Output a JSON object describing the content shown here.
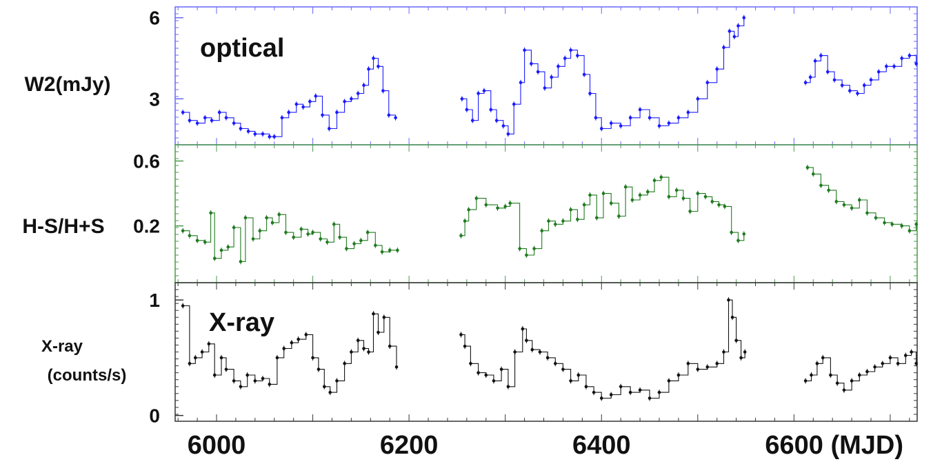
{
  "chart_data": [
    {
      "type": "line",
      "panel": "optical",
      "ylabel": "W2(mJy)",
      "annotation": "optical",
      "color": "#1a1aff",
      "xlim": [
        5957,
        6728
      ],
      "ylim": [
        1.3,
        6.4
      ],
      "yticks": [
        3,
        6
      ],
      "series": [
        {
          "x": [
            5965,
            5972,
            5980,
            5988,
            5995,
            6003,
            6010,
            6018,
            6025,
            6033,
            6040,
            6048,
            6055,
            6060,
            6068,
            6075,
            6083,
            6090,
            6097,
            6103,
            6110,
            6117,
            6125,
            6133,
            6140,
            6147,
            6153,
            6158,
            6163,
            6168,
            6173,
            6179,
            6186,
            6255,
            6260,
            6266,
            6272,
            6278,
            6285,
            6291,
            6298,
            6303,
            6309,
            6316,
            6320,
            6327,
            6334,
            6341,
            6348,
            6355,
            6362,
            6368,
            6375,
            6382,
            6388,
            6394,
            6400,
            6410,
            6420,
            6430,
            6440,
            6450,
            6460,
            6470,
            6480,
            6490,
            6500,
            6510,
            6520,
            6527,
            6533,
            6538,
            6542,
            6548,
            6612,
            6617,
            6622,
            6628,
            6635,
            6642,
            6650,
            6658,
            6666,
            6673,
            6680,
            6688,
            6696,
            6704,
            6712,
            6720,
            6727
          ],
          "y": [
            2.5,
            2.2,
            2.1,
            2.3,
            2.2,
            2.5,
            2.3,
            2.1,
            1.9,
            1.8,
            1.7,
            1.7,
            1.6,
            1.6,
            2.3,
            2.5,
            2.8,
            2.7,
            2.9,
            3.1,
            2.4,
            1.9,
            2.5,
            2.9,
            3.0,
            3.2,
            3.5,
            4.1,
            4.5,
            4.2,
            3.3,
            2.4,
            2.3,
            3.0,
            2.6,
            2.2,
            3.2,
            3.3,
            2.6,
            2.2,
            2.0,
            1.7,
            2.8,
            3.6,
            4.8,
            4.3,
            4.0,
            3.4,
            3.8,
            4.2,
            4.5,
            4.8,
            4.6,
            3.9,
            3.2,
            2.3,
            1.9,
            2.1,
            2.0,
            2.3,
            2.6,
            2.3,
            2.0,
            2.1,
            2.3,
            2.5,
            3.0,
            3.6,
            4.1,
            4.9,
            5.5,
            5.3,
            5.7,
            6.0,
            3.6,
            3.8,
            4.4,
            4.6,
            4.0,
            3.7,
            3.5,
            3.3,
            3.2,
            3.5,
            3.7,
            4.0,
            4.2,
            4.2,
            4.5,
            4.6,
            4.3
          ]
        }
      ]
    },
    {
      "type": "line",
      "panel": "hardness",
      "ylabel": "H-S/H+S",
      "color": "#1f7a1f",
      "xlim": [
        5957,
        6728
      ],
      "ylim": [
        -0.15,
        0.7
      ],
      "yticks": [
        0.2,
        0.6
      ],
      "yticklabels": [
        "0.2",
        "0.6"
      ],
      "series": [
        {
          "x": [
            5965,
            5972,
            5980,
            5988,
            5994,
            5998,
            6005,
            6012,
            6018,
            6025,
            6030,
            6038,
            6045,
            6052,
            6058,
            6065,
            6072,
            6080,
            6088,
            6095,
            6100,
            6108,
            6115,
            6122,
            6128,
            6135,
            6143,
            6150,
            6157,
            6165,
            6172,
            6180,
            6188,
            6254,
            6258,
            6262,
            6270,
            6280,
            6292,
            6300,
            6305,
            6315,
            6322,
            6330,
            6338,
            6345,
            6352,
            6360,
            6368,
            6375,
            6382,
            6388,
            6395,
            6402,
            6410,
            6418,
            6425,
            6432,
            6440,
            6448,
            6455,
            6462,
            6470,
            6478,
            6485,
            6492,
            6500,
            6508,
            6515,
            6522,
            6528,
            6535,
            6542,
            6548,
            6614,
            6620,
            6628,
            6636,
            6644,
            6652,
            6660,
            6668,
            6676,
            6685,
            6694,
            6702,
            6712,
            6720,
            6727
          ],
          "y": [
            0.17,
            0.14,
            0.11,
            0.1,
            0.28,
            0.0,
            0.05,
            0.07,
            0.19,
            -0.02,
            0.25,
            0.12,
            0.17,
            0.25,
            0.22,
            0.27,
            0.16,
            0.13,
            0.18,
            0.15,
            0.16,
            0.12,
            0.1,
            0.21,
            0.13,
            0.06,
            0.09,
            0.11,
            0.16,
            0.08,
            0.04,
            0.05,
            0.05,
            0.14,
            0.23,
            0.3,
            0.37,
            0.33,
            0.31,
            0.32,
            0.34,
            0.06,
            0.02,
            0.06,
            0.17,
            0.23,
            0.21,
            0.23,
            0.3,
            0.24,
            0.33,
            0.39,
            0.25,
            0.4,
            0.34,
            0.26,
            0.44,
            0.36,
            0.39,
            0.41,
            0.48,
            0.5,
            0.38,
            0.42,
            0.37,
            0.29,
            0.4,
            0.38,
            0.35,
            0.33,
            0.32,
            0.16,
            0.11,
            0.15,
            0.56,
            0.52,
            0.45,
            0.42,
            0.35,
            0.33,
            0.31,
            0.36,
            0.28,
            0.25,
            0.22,
            0.21,
            0.2,
            0.17,
            0.21
          ]
        }
      ]
    },
    {
      "type": "line",
      "panel": "xray",
      "ylabel": "X-ray (counts/s)",
      "annotation": "X-ray",
      "color": "#111111",
      "xlim": [
        5957,
        6728
      ],
      "ylim": [
        -0.05,
        1.15
      ],
      "yticks": [
        0,
        1
      ],
      "xticks": [
        6000,
        6200,
        6400,
        6600
      ],
      "xticklabels": [
        "6000",
        "6200",
        "6400",
        "6600 (MJD)"
      ],
      "series": [
        {
          "x": [
            5965,
            5972,
            5978,
            5985,
            5992,
            5998,
            6005,
            6010,
            6018,
            6025,
            6032,
            6040,
            6048,
            6055,
            6063,
            6070,
            6078,
            6085,
            6093,
            6100,
            6106,
            6112,
            6118,
            6125,
            6133,
            6140,
            6147,
            6153,
            6158,
            6163,
            6168,
            6174,
            6180,
            6187,
            6254,
            6258,
            6264,
            6272,
            6280,
            6288,
            6296,
            6303,
            6310,
            6318,
            6322,
            6328,
            6336,
            6344,
            6352,
            6360,
            6368,
            6376,
            6384,
            6392,
            6400,
            6410,
            6420,
            6430,
            6440,
            6450,
            6460,
            6470,
            6480,
            6490,
            6500,
            6510,
            6520,
            6527,
            6532,
            6536,
            6540,
            6545,
            6549,
            6612,
            6618,
            6624,
            6630,
            6638,
            6645,
            6652,
            6660,
            6668,
            6676,
            6684,
            6692,
            6700,
            6708,
            6716,
            6722,
            6727
          ],
          "y": [
            0.95,
            0.45,
            0.5,
            0.55,
            0.62,
            0.35,
            0.5,
            0.4,
            0.3,
            0.25,
            0.35,
            0.3,
            0.32,
            0.27,
            0.5,
            0.58,
            0.63,
            0.66,
            0.7,
            0.5,
            0.4,
            0.25,
            0.2,
            0.3,
            0.45,
            0.55,
            0.65,
            0.58,
            0.55,
            0.88,
            0.72,
            0.85,
            0.6,
            0.42,
            0.7,
            0.6,
            0.45,
            0.37,
            0.35,
            0.3,
            0.4,
            0.25,
            0.55,
            0.75,
            0.65,
            0.57,
            0.55,
            0.5,
            0.45,
            0.4,
            0.3,
            0.35,
            0.25,
            0.2,
            0.15,
            0.18,
            0.25,
            0.2,
            0.22,
            0.15,
            0.2,
            0.3,
            0.35,
            0.45,
            0.4,
            0.42,
            0.45,
            0.55,
            1.0,
            0.85,
            0.65,
            0.5,
            0.55,
            0.3,
            0.35,
            0.45,
            0.5,
            0.35,
            0.28,
            0.22,
            0.3,
            0.35,
            0.38,
            0.42,
            0.45,
            0.5,
            0.45,
            0.52,
            0.55,
            0.45
          ]
        }
      ]
    }
  ]
}
